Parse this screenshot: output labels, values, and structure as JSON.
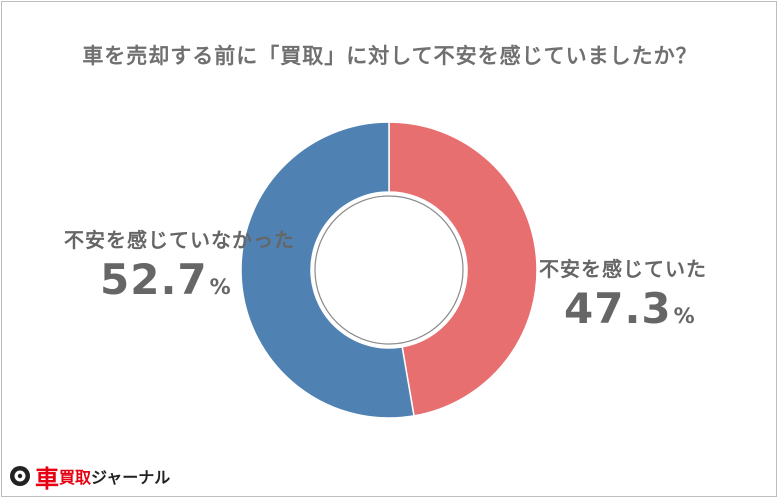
{
  "chart_data": {
    "type": "pie",
    "title": "車を売却する前に「買取」に対して不安を感じていましたか？",
    "categories": [
      "不安を感じていた",
      "不安を感じていなかった"
    ],
    "values": [
      47.3,
      52.7
    ],
    "unit": "%",
    "value_labels": [
      "47.3",
      "52.7"
    ],
    "colors": [
      "#e86f70",
      "#4f82b3"
    ]
  },
  "logo": {
    "mark": "車",
    "accent": "買取",
    "rest": "ジャーナル"
  }
}
